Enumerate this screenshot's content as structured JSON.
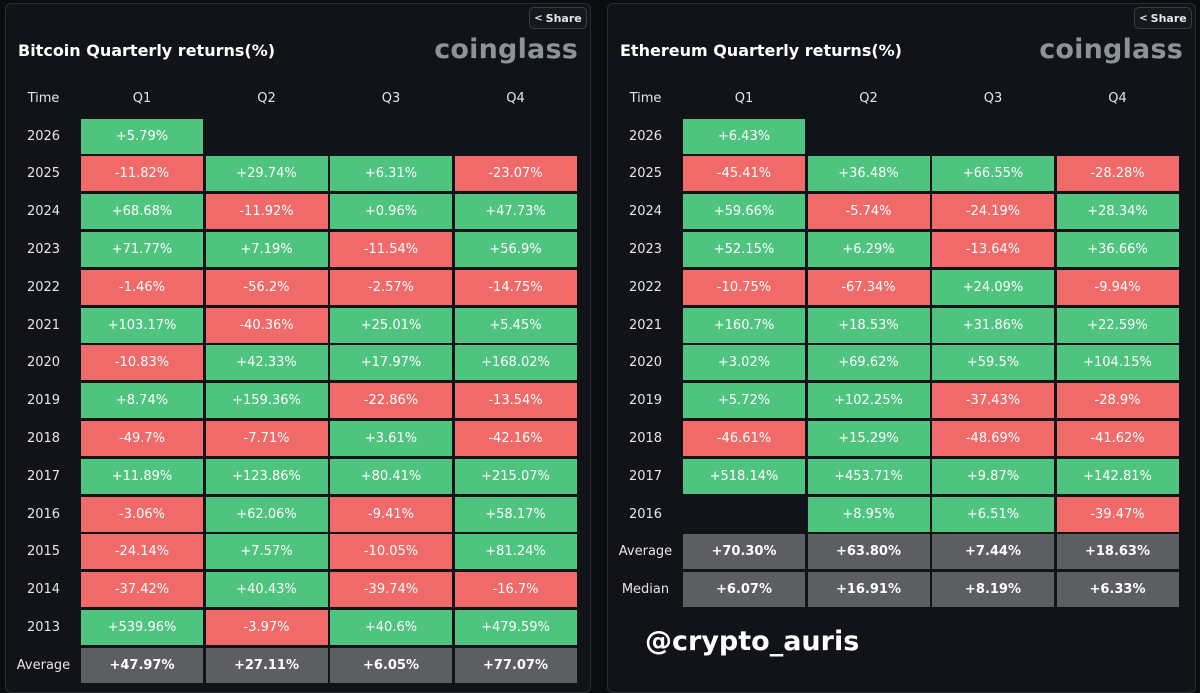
{
  "colors": {
    "positive": "#4fc47f",
    "negative": "#f06a6a",
    "aggregate": "#5c5e62",
    "background": "#0b0c0e"
  },
  "panels": [
    {
      "title": "Bitcoin Quarterly returns(%)",
      "brand": "coinglass",
      "share_label": "Share",
      "share_icon": "share-icon",
      "header_time": "Time",
      "columns": [
        "Q1",
        "Q2",
        "Q3",
        "Q4"
      ],
      "rows": [
        {
          "label": "2026",
          "values": [
            "+5.79%",
            "",
            "",
            ""
          ]
        },
        {
          "label": "2025",
          "values": [
            "-11.82%",
            "+29.74%",
            "+6.31%",
            "-23.07%"
          ]
        },
        {
          "label": "2024",
          "values": [
            "+68.68%",
            "-11.92%",
            "+0.96%",
            "+47.73%"
          ]
        },
        {
          "label": "2023",
          "values": [
            "+71.77%",
            "+7.19%",
            "-11.54%",
            "+56.9%"
          ]
        },
        {
          "label": "2022",
          "values": [
            "-1.46%",
            "-56.2%",
            "-2.57%",
            "-14.75%"
          ]
        },
        {
          "label": "2021",
          "values": [
            "+103.17%",
            "-40.36%",
            "+25.01%",
            "+5.45%"
          ]
        },
        {
          "label": "2020",
          "values": [
            "-10.83%",
            "+42.33%",
            "+17.97%",
            "+168.02%"
          ]
        },
        {
          "label": "2019",
          "values": [
            "+8.74%",
            "+159.36%",
            "-22.86%",
            "-13.54%"
          ]
        },
        {
          "label": "2018",
          "values": [
            "-49.7%",
            "-7.71%",
            "+3.61%",
            "-42.16%"
          ]
        },
        {
          "label": "2017",
          "values": [
            "+11.89%",
            "+123.86%",
            "+80.41%",
            "+215.07%"
          ]
        },
        {
          "label": "2016",
          "values": [
            "-3.06%",
            "+62.06%",
            "-9.41%",
            "+58.17%"
          ]
        },
        {
          "label": "2015",
          "values": [
            "-24.14%",
            "+7.57%",
            "-10.05%",
            "+81.24%"
          ]
        },
        {
          "label": "2014",
          "values": [
            "-37.42%",
            "+40.43%",
            "-39.74%",
            "-16.7%"
          ]
        },
        {
          "label": "2013",
          "values": [
            "+539.96%",
            "-3.97%",
            "+40.6%",
            "+479.59%"
          ]
        },
        {
          "label": "Average",
          "values": [
            "+47.97%",
            "+27.11%",
            "+6.05%",
            "+77.07%"
          ],
          "aggregate": true
        }
      ]
    },
    {
      "title": "Ethereum Quarterly returns(%)",
      "brand": "coinglass",
      "share_label": "Share",
      "share_icon": "share-icon",
      "header_time": "Time",
      "columns": [
        "Q1",
        "Q2",
        "Q3",
        "Q4"
      ],
      "rows": [
        {
          "label": "2026",
          "values": [
            "+6.43%",
            "",
            "",
            ""
          ]
        },
        {
          "label": "2025",
          "values": [
            "-45.41%",
            "+36.48%",
            "+66.55%",
            "-28.28%"
          ]
        },
        {
          "label": "2024",
          "values": [
            "+59.66%",
            "-5.74%",
            "-24.19%",
            "+28.34%"
          ]
        },
        {
          "label": "2023",
          "values": [
            "+52.15%",
            "+6.29%",
            "-13.64%",
            "+36.66%"
          ]
        },
        {
          "label": "2022",
          "values": [
            "-10.75%",
            "-67.34%",
            "+24.09%",
            "-9.94%"
          ]
        },
        {
          "label": "2021",
          "values": [
            "+160.7%",
            "+18.53%",
            "+31.86%",
            "+22.59%"
          ]
        },
        {
          "label": "2020",
          "values": [
            "+3.02%",
            "+69.62%",
            "+59.5%",
            "+104.15%"
          ]
        },
        {
          "label": "2019",
          "values": [
            "+5.72%",
            "+102.25%",
            "-37.43%",
            "-28.9%"
          ]
        },
        {
          "label": "2018",
          "values": [
            "-46.61%",
            "+15.29%",
            "-48.69%",
            "-41.62%"
          ]
        },
        {
          "label": "2017",
          "values": [
            "+518.14%",
            "+453.71%",
            "+9.87%",
            "+142.81%"
          ]
        },
        {
          "label": "2016",
          "values": [
            "",
            "+8.95%",
            "+6.51%",
            "-39.47%"
          ]
        },
        {
          "label": "Average",
          "values": [
            "+70.30%",
            "+63.80%",
            "+7.44%",
            "+18.63%"
          ],
          "aggregate": true
        },
        {
          "label": "Median",
          "values": [
            "+6.07%",
            "+16.91%",
            "+8.19%",
            "+6.33%"
          ],
          "aggregate": true
        }
      ]
    }
  ],
  "watermark": "@crypto_auris"
}
